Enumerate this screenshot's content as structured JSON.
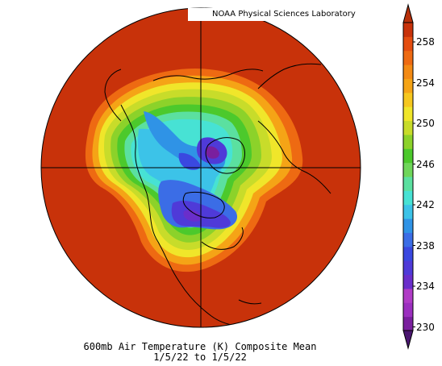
{
  "credit": "NOAA Physical Sciences Laboratory",
  "title_line1": "600mb Air Temperature (K) Composite Mean",
  "title_line2": "1/5/22  to 1/5/22",
  "colorbar": {
    "labels": [
      "258",
      "254",
      "250",
      "246",
      "242",
      "238",
      "234",
      "230"
    ],
    "colors": [
      "#7a1f9e",
      "#9b2fbf",
      "#b03cc6",
      "#6a2ecb",
      "#4f3ad8",
      "#3a48e0",
      "#3b6de6",
      "#2f93e6",
      "#3cc3e8",
      "#47e2d4",
      "#5be0a0",
      "#6fd65a",
      "#4cc92c",
      "#8cd22a",
      "#c8dc2a",
      "#f0e62a",
      "#f6c71e",
      "#f5a416",
      "#f38a14",
      "#ee6a12",
      "#e44d10",
      "#c8320a"
    ],
    "arrow_bottom_color": "#4a1670",
    "arrow_top_color": "#b8300a"
  },
  "map": {
    "background_color": "#c8320a",
    "projection": "north-polar-stereographic"
  }
}
